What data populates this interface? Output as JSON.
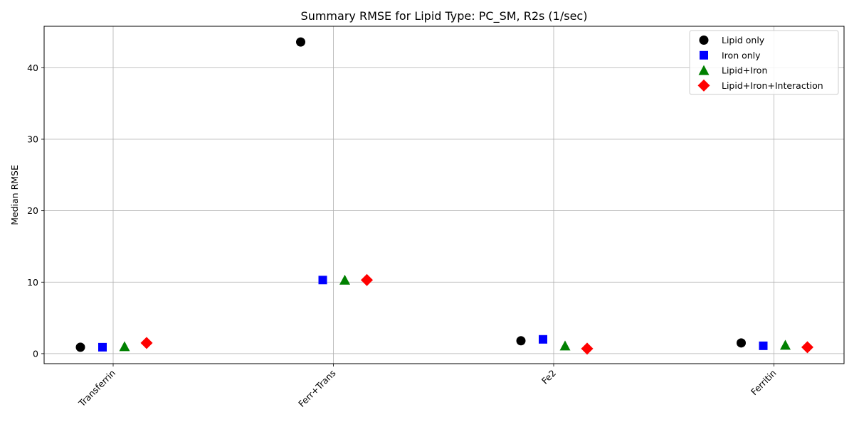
{
  "chart_data": {
    "type": "scatter",
    "title": "Summary RMSE for Lipid Type: PC_SM, R2s (1/sec)",
    "xlabel": "",
    "ylabel": "Median RMSE",
    "categories": [
      "Transferrin",
      "Ferr+Trans",
      "Fe2",
      "Ferritin"
    ],
    "ylim": [
      -1.4,
      45.8
    ],
    "yticks": [
      0,
      10,
      20,
      30,
      40
    ],
    "grid": true,
    "legend_position": "top-right",
    "series": [
      {
        "name": "Lipid only",
        "marker": "circle",
        "color": "#000000",
        "values": [
          0.9,
          43.6,
          1.8,
          1.5
        ]
      },
      {
        "name": "Iron only",
        "marker": "square",
        "color": "#0000ff",
        "values": [
          0.9,
          10.3,
          2.0,
          1.1
        ]
      },
      {
        "name": "Lipid+Iron",
        "marker": "triangle",
        "color": "#008000",
        "values": [
          1.0,
          10.3,
          1.1,
          1.2
        ]
      },
      {
        "name": "Lipid+Iron+Interaction",
        "marker": "diamond",
        "color": "#ff0000",
        "values": [
          1.5,
          10.3,
          0.7,
          0.9
        ]
      }
    ]
  }
}
